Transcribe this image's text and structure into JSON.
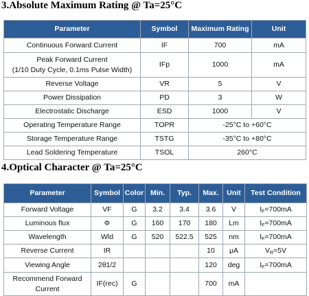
{
  "section1": {
    "title": "3.Absolute Maximum Rating @ Ta=25°C",
    "headers": [
      "Parameter",
      "Symbol",
      "Maximum Rating",
      "Unit"
    ],
    "rows": [
      {
        "param": "Continuous Forward Current",
        "symbol": "IF",
        "rating": "700",
        "unit": "mA"
      },
      {
        "param": "Peak Forward Current",
        "param2": "(1/10 Duty Cycle, 0.1ms Pulse Width)",
        "symbol": "IFp",
        "rating": "1000",
        "unit": "mA"
      },
      {
        "param": "Reverse Voltage",
        "symbol": "VR",
        "rating": "5",
        "unit": "V"
      },
      {
        "param": "Power Dissipation",
        "symbol": "PD",
        "rating": "3",
        "unit": "W"
      },
      {
        "param": "Electrostatic Discharge",
        "symbol": "ESD",
        "rating": "1000",
        "unit": "V"
      },
      {
        "param": "Operating Temperature Range",
        "symbol": "TOPR",
        "rating": "-25°C to +60°C"
      },
      {
        "param": "Storage Temperature Range",
        "symbol": "TSTG",
        "rating": "-35°C to +80°C"
      },
      {
        "param": "Lead Soldering Temperature",
        "symbol": "TSOL",
        "rating": "260°C"
      }
    ]
  },
  "section2": {
    "title": "4.Optical Character @ Ta=25°C",
    "headers": [
      "Parameter",
      "Symbol",
      "Color",
      "Min.",
      "Typ.",
      "Max.",
      "Unit",
      "Test Condition"
    ],
    "rows": [
      {
        "param": "Forward Voltage",
        "symbol": "VF",
        "color": "G",
        "min": "3.2",
        "typ": "3.4",
        "max": "3.6",
        "unit": "V",
        "cond_sym": "I",
        "cond_sub": "F",
        "cond_val": "=700mA"
      },
      {
        "param": "Luminous flux",
        "symbol": "Φ",
        "color": "G",
        "min": "160",
        "typ": "170",
        "max": "180",
        "unit": "Lm",
        "cond_sym": "I",
        "cond_sub": "F",
        "cond_val": "=700mA"
      },
      {
        "param": "Wavelength",
        "symbol": "Wld",
        "color": "G",
        "min": "520",
        "typ": "522.5",
        "max": "525",
        "unit": "nm",
        "cond_sym": "I",
        "cond_sub": "F",
        "cond_val": "=700mA"
      },
      {
        "param": "Reverse Current",
        "symbol": "IR",
        "color": "",
        "min": "",
        "typ": "",
        "max": "10",
        "unit": "μA",
        "cond_sym": "V",
        "cond_sub": "R",
        "cond_val": "=5V"
      },
      {
        "param": "Viewing Angle",
        "symbol": "2θ1/2",
        "color": "",
        "min": "",
        "typ": "",
        "max": "120",
        "unit": "deg",
        "cond_sym": "I",
        "cond_sub": "F",
        "cond_val": "=700mA"
      },
      {
        "param": "Recommend Forward",
        "param2": "Current",
        "symbol": "IF(rec)",
        "color": "G",
        "min": "",
        "typ": "",
        "max": "700",
        "unit": "mA",
        "cond_sym": "",
        "cond_sub": "",
        "cond_val": ""
      }
    ]
  }
}
